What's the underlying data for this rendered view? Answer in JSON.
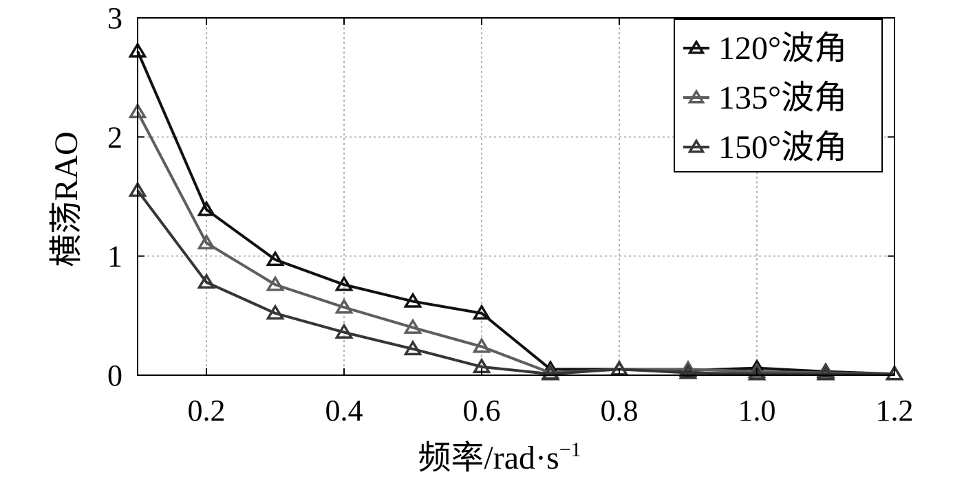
{
  "chart_data": {
    "type": "line",
    "title": "",
    "xlabel": "频率/rad·s",
    "xlabel_sup": "−1",
    "ylabel": "横荡RAO",
    "xlim": [
      0.1,
      1.2
    ],
    "ylim": [
      0,
      3
    ],
    "xticks": [
      "0.2",
      "0.4",
      "0.6",
      "0.8",
      "1.0",
      "1.2"
    ],
    "xtick_values": [
      0.2,
      0.4,
      0.6,
      0.8,
      1.0,
      1.2
    ],
    "yticks": [
      "0",
      "1",
      "2",
      "3"
    ],
    "ytick_values": [
      0,
      1,
      2,
      3
    ],
    "grid": true,
    "legend_position": "top-right",
    "x": [
      0.1,
      0.2,
      0.3,
      0.4,
      0.5,
      0.6,
      0.7,
      0.8,
      0.9,
      1.0,
      1.1,
      1.2
    ],
    "series": [
      {
        "name": "120°波角",
        "color": "#111111",
        "marker": "triangle",
        "values": [
          2.72,
          1.39,
          0.97,
          0.76,
          0.62,
          0.52,
          0.05,
          0.05,
          0.04,
          0.06,
          0.03,
          0.01
        ]
      },
      {
        "name": "135°波角",
        "color": "#5e5e5e",
        "marker": "triangle",
        "values": [
          2.21,
          1.11,
          0.76,
          0.57,
          0.4,
          0.24,
          0.02,
          0.05,
          0.05,
          0.03,
          0.02,
          0.01
        ]
      },
      {
        "name": "150°波角",
        "color": "#363636",
        "marker": "triangle",
        "values": [
          1.55,
          0.78,
          0.52,
          0.36,
          0.22,
          0.07,
          0.01,
          0.05,
          0.02,
          0.01,
          0.01,
          0.01
        ]
      }
    ]
  }
}
